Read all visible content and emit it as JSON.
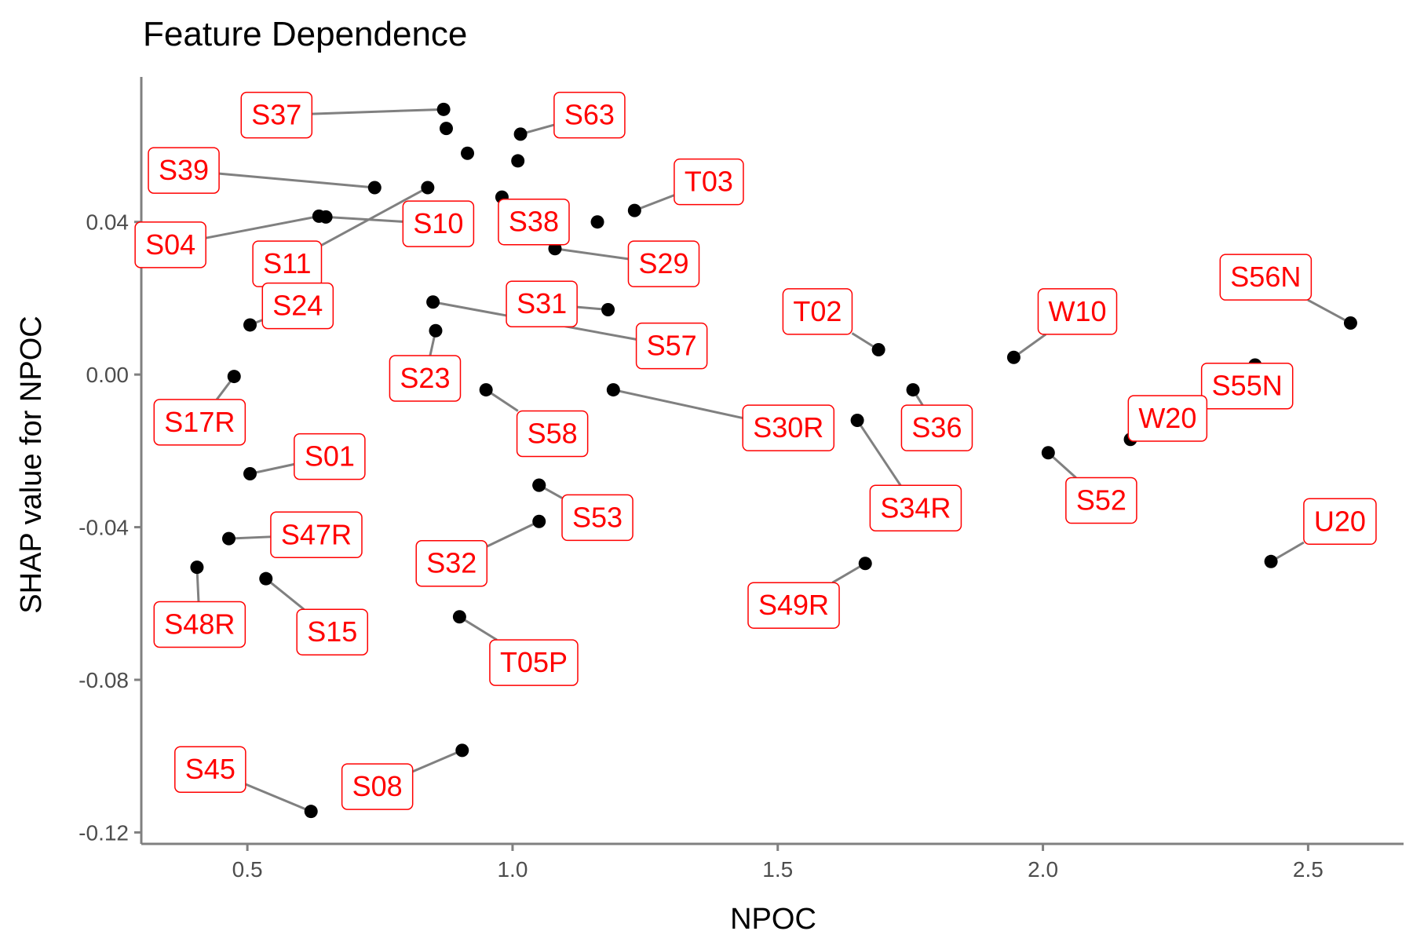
{
  "chart_data": {
    "type": "scatter",
    "title": "Feature Dependence",
    "xlabel": "NPOC",
    "ylabel": "SHAP value for NPOC",
    "xlim": [
      0.3,
      2.68
    ],
    "ylim": [
      -0.123,
      0.078
    ],
    "x_ticks": [
      0.5,
      1.0,
      1.5,
      2.0,
      2.5
    ],
    "x_tick_labels": [
      "0.5",
      "1.0",
      "1.5",
      "2.0",
      "2.5"
    ],
    "y_ticks": [
      0.04,
      0.0,
      -0.04,
      -0.08,
      -0.12
    ],
    "y_tick_labels": [
      "0.04",
      "0.00",
      "-0.04",
      "-0.08",
      "-0.12"
    ],
    "grid": false,
    "point_color": "#000000",
    "label_color": "#ff0000",
    "leader_color": "#808080",
    "points": [
      {
        "label": "S37",
        "x": 0.87,
        "y": 0.0695,
        "lx": 0.555,
        "ly": 0.068
      },
      {
        "label": "S63",
        "x": 1.015,
        "y": 0.063,
        "lx": 1.145,
        "ly": 0.068
      },
      {
        "label": "S39",
        "x": 0.74,
        "y": 0.049,
        "lx": 0.38,
        "ly": 0.0535
      },
      {
        "label": "T03",
        "x": 1.23,
        "y": 0.043,
        "lx": 1.37,
        "ly": 0.0505
      },
      {
        "label": "S04",
        "x": 0.635,
        "y": 0.0415,
        "lx": 0.355,
        "ly": 0.034
      },
      {
        "label": "S10",
        "x": 0.648,
        "y": 0.0413,
        "lx": 0.86,
        "ly": 0.0395
      },
      {
        "label": "S38",
        "x": 0.98,
        "y": 0.0465,
        "lx": 1.04,
        "ly": 0.04
      },
      {
        "label": "S29",
        "x": 1.08,
        "y": 0.033,
        "lx": 1.285,
        "ly": 0.029
      },
      {
        "label": "S11",
        "x": 0.84,
        "y": 0.049,
        "lx": 0.575,
        "ly": 0.029
      },
      {
        "label": "S24",
        "x": 0.505,
        "y": 0.013,
        "lx": 0.595,
        "ly": 0.018
      },
      {
        "label": "S31",
        "x": 1.18,
        "y": 0.017,
        "lx": 1.055,
        "ly": 0.0185
      },
      {
        "label": "T02",
        "x": 1.69,
        "y": 0.0065,
        "lx": 1.575,
        "ly": 0.0165
      },
      {
        "label": "W10",
        "x": 1.945,
        "y": 0.0045,
        "lx": 2.065,
        "ly": 0.0165
      },
      {
        "label": "S56N",
        "x": 2.58,
        "y": 0.0135,
        "lx": 2.42,
        "ly": 0.0255
      },
      {
        "label": "S57",
        "x": 0.85,
        "y": 0.019,
        "lx": 1.3,
        "ly": 0.0075
      },
      {
        "label": "S23",
        "x": 0.855,
        "y": 0.0115,
        "lx": 0.835,
        "ly": -0.001
      },
      {
        "label": "S58",
        "x": 0.95,
        "y": -0.004,
        "lx": 1.075,
        "ly": -0.0155
      },
      {
        "label": "S30R",
        "x": 1.19,
        "y": -0.004,
        "lx": 1.52,
        "ly": -0.014
      },
      {
        "label": "S36",
        "x": 1.755,
        "y": -0.004,
        "lx": 1.8,
        "ly": -0.014
      },
      {
        "label": "S55N",
        "x": 2.4,
        "y": 0.0025,
        "lx": 2.385,
        "ly": -0.003
      },
      {
        "label": "W20",
        "x": 2.165,
        "y": -0.017,
        "lx": 2.235,
        "ly": -0.0115
      },
      {
        "label": "S17R",
        "x": 0.475,
        "y": -0.0005,
        "lx": 0.41,
        "ly": -0.0125
      },
      {
        "label": "S34R",
        "x": 1.65,
        "y": -0.012,
        "lx": 1.76,
        "ly": -0.035
      },
      {
        "label": "S52",
        "x": 2.01,
        "y": -0.0205,
        "lx": 2.11,
        "ly": -0.033
      },
      {
        "label": "S01",
        "x": 0.505,
        "y": -0.026,
        "lx": 0.655,
        "ly": -0.0215
      },
      {
        "label": "S53",
        "x": 1.05,
        "y": -0.029,
        "lx": 1.16,
        "ly": -0.0375
      },
      {
        "label": "S47R",
        "x": 0.465,
        "y": -0.043,
        "lx": 0.63,
        "ly": -0.042
      },
      {
        "label": "U20",
        "x": 2.43,
        "y": -0.049,
        "lx": 2.56,
        "ly": -0.0385
      },
      {
        "label": "S32",
        "x": 1.05,
        "y": -0.0385,
        "lx": 0.885,
        "ly": -0.0495
      },
      {
        "label": "S48R",
        "x": 0.405,
        "y": -0.0505,
        "lx": 0.41,
        "ly": -0.0655
      },
      {
        "label": "S15",
        "x": 0.535,
        "y": -0.0535,
        "lx": 0.66,
        "ly": -0.0675
      },
      {
        "label": "S49R",
        "x": 1.665,
        "y": -0.0495,
        "lx": 1.53,
        "ly": -0.0605
      },
      {
        "label": "T05P",
        "x": 0.9,
        "y": -0.0635,
        "lx": 1.04,
        "ly": -0.0755
      },
      {
        "label": "S45",
        "x": 0.62,
        "y": -0.1145,
        "lx": 0.43,
        "ly": -0.1035
      },
      {
        "label": "S08",
        "x": 0.905,
        "y": -0.0985,
        "lx": 0.745,
        "ly": -0.108
      },
      {
        "x": 0.875,
        "y": 0.0645
      },
      {
        "x": 0.915,
        "y": 0.058
      },
      {
        "x": 1.01,
        "y": 0.056
      },
      {
        "x": 1.16,
        "y": 0.04
      },
      {
        "x": 1.05,
        "y": -0.029
      }
    ]
  }
}
